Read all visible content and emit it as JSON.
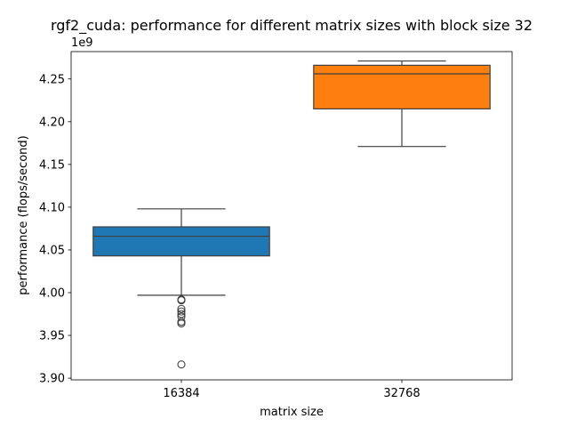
{
  "chart_data": {
    "type": "box",
    "title": "rgf2_cuda: performance for different matrix sizes with block size 32",
    "xlabel": "matrix size",
    "ylabel": "performance (flops/second)",
    "y_offset_label": "1e9",
    "y_scale_multiplier": 1000000000.0,
    "ylim": [
      3.898,
      4.282
    ],
    "yticks": [
      3.9,
      3.95,
      4.0,
      4.05,
      4.1,
      4.15,
      4.2,
      4.25
    ],
    "ytick_labels": [
      "3.90",
      "3.95",
      "4.00",
      "4.05",
      "4.10",
      "4.15",
      "4.20",
      "4.25"
    ],
    "grid": false,
    "categories": [
      "16384",
      "32768"
    ],
    "series": [
      {
        "color": "#1f77b4",
        "boxes": [
          {
            "category": "16384",
            "whisker_low": 3.997,
            "q1": 4.043,
            "median": 4.066,
            "q3": 4.077,
            "whisker_high": 4.098,
            "outliers": [
              3.992,
              3.991,
              3.981,
              3.978,
              3.975,
              3.972,
              3.966,
              3.964,
              3.916
            ]
          }
        ]
      },
      {
        "color": "#ff7f0e",
        "boxes": [
          {
            "category": "32768",
            "whisker_low": 4.171,
            "q1": 4.215,
            "median": 4.256,
            "q3": 4.266,
            "whisker_high": 4.271,
            "outliers": []
          }
        ]
      }
    ]
  }
}
